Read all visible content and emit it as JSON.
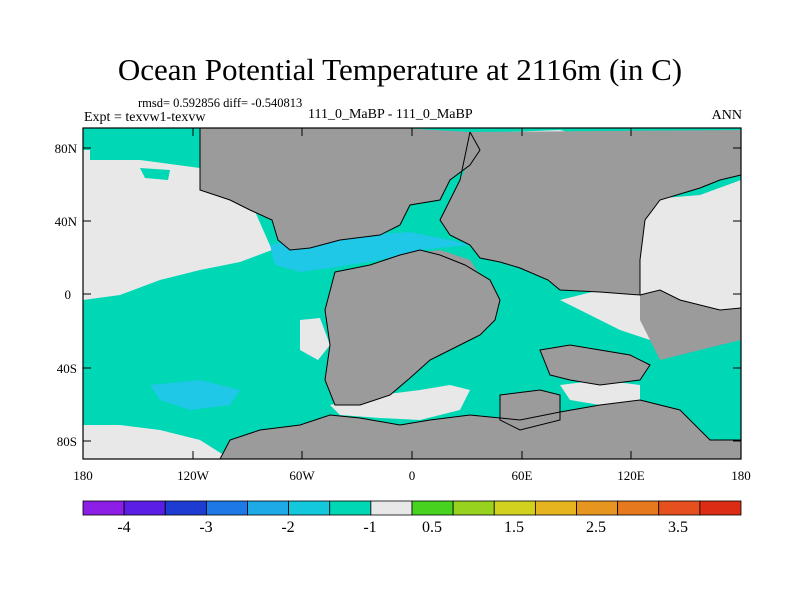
{
  "figure": {
    "title": "Ocean Potential Temperature at 2116m (in C)",
    "stats_line": "rmsd= 0.592856 diff= -0.540813",
    "left_label": "Expt = texvw1-texvw",
    "center_label": "111_0_MaBP - 111_0_MaBP",
    "right_label": "ANN"
  },
  "map": {
    "lat_ticks": [
      "80N",
      "40N",
      "0",
      "40S",
      "80S"
    ],
    "lon_ticks": [
      "180",
      "120W",
      "60W",
      "0",
      "60E",
      "120E",
      "180"
    ],
    "colors": {
      "land": "#9b9b9b",
      "near_zero": "#e8e8e8",
      "minus_one": "#00d7b4",
      "minus_two": "#1ec8e6",
      "minus_three": "#1e96e6",
      "coast": "#000000"
    }
  },
  "colorbar": {
    "colors": [
      "#8c1ee6",
      "#5a1ee6",
      "#1e3cd2",
      "#1e78e6",
      "#1eaae6",
      "#14c8dc",
      "#00d7b4",
      "#e8e8e8",
      "#46d21e",
      "#96d21e",
      "#d2d21e",
      "#e6b41e",
      "#e6961e",
      "#e6781e",
      "#e6501e",
      "#dc2d14"
    ],
    "labels": [
      "-4",
      "-3",
      "-2",
      "-1",
      "0.5",
      "1.5",
      "2.5",
      "3.5"
    ]
  }
}
